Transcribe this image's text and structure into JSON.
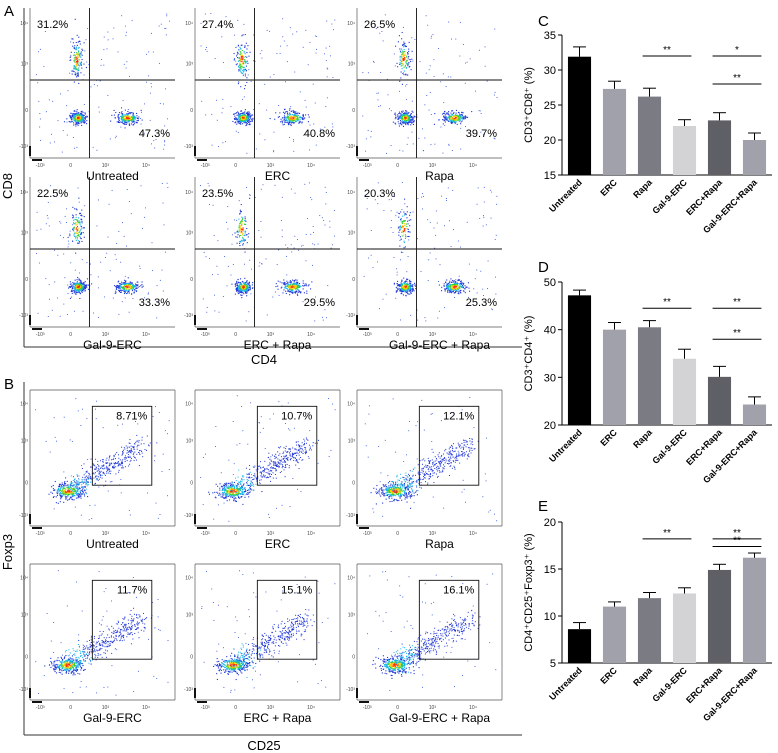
{
  "figure": {
    "panel_letters": [
      "A",
      "B",
      "C",
      "D",
      "E"
    ],
    "panel_a": {
      "y_axis_label": "CD8",
      "x_axis_label": "CD4",
      "plots": [
        {
          "name": "Untreated",
          "upper_left": "31.2%",
          "lower_right": "47.3%"
        },
        {
          "name": "ERC",
          "upper_left": "27.4%",
          "lower_right": "40.8%"
        },
        {
          "name": "Rapa",
          "upper_left": "26.5%",
          "lower_right": "39.7%"
        },
        {
          "name": "Gal-9-ERC",
          "upper_left": "22.5%",
          "lower_right": "33.3%"
        },
        {
          "name": "ERC + Rapa",
          "upper_left": "23.5%",
          "lower_right": "29.5%"
        },
        {
          "name": "Gal-9-ERC + Rapa",
          "upper_left": "20.3%",
          "lower_right": "25.3%"
        }
      ]
    },
    "panel_b": {
      "y_axis_label": "Foxp3",
      "x_axis_label": "CD25",
      "plots": [
        {
          "name": "Untreated",
          "gate": "8.71%"
        },
        {
          "name": "ERC",
          "gate": "10.7%"
        },
        {
          "name": "Rapa",
          "gate": "12.1%"
        },
        {
          "name": "Gal-9-ERC",
          "gate": "11.7%"
        },
        {
          "name": "ERC + Rapa",
          "gate": "15.1%"
        },
        {
          "name": "Gal-9-ERC + Rapa",
          "gate": "16.1%"
        }
      ]
    },
    "flow_tick_labels": {
      "x": [
        "-10³",
        "0",
        "10³",
        "10⁴"
      ],
      "y": [
        "10⁴",
        "10³",
        "0",
        "-10³"
      ]
    }
  },
  "chart_data": [
    {
      "panel": "C",
      "type": "bar",
      "ylabel": "CD3⁺CD8⁺ (%)",
      "ylim": [
        15,
        35
      ],
      "yticks": [
        15,
        20,
        25,
        30,
        35
      ],
      "categories": [
        "Untreated",
        "ERC",
        "Rapa",
        "Gal-9-ERC",
        "ERC+Rapa",
        "Gal-9-ERC+Rapa"
      ],
      "values": [
        31.9,
        27.3,
        26.2,
        22.0,
        22.8,
        20.0
      ],
      "errors": [
        1.4,
        1.1,
        1.2,
        0.9,
        1.1,
        1.0
      ],
      "colors": [
        "#000000",
        "#a1a1ab",
        "#7b7b84",
        "#d3d3d6",
        "#5f5f66",
        "#a1a1ab"
      ],
      "significance": [
        {
          "from": 2,
          "to": 3,
          "label": "**",
          "level": 32.0
        },
        {
          "from": 4,
          "to": 5,
          "label": "*",
          "level": 32.0
        },
        {
          "from": 4,
          "to": 5,
          "label": "**",
          "level": 28.0
        }
      ]
    },
    {
      "panel": "D",
      "type": "bar",
      "ylabel": "CD3⁺CD4⁺ (%)",
      "ylim": [
        20,
        50
      ],
      "yticks": [
        20,
        30,
        40,
        50
      ],
      "categories": [
        "Untreated",
        "ERC",
        "Rapa",
        "Gal-9-ERC",
        "ERC+Rapa",
        "Gal-9-ERC+Rapa"
      ],
      "values": [
        47.2,
        40.0,
        40.5,
        33.9,
        30.1,
        24.3
      ],
      "errors": [
        1.1,
        1.5,
        1.4,
        2.0,
        2.2,
        1.6
      ],
      "colors": [
        "#000000",
        "#a1a1ab",
        "#7b7b84",
        "#d3d3d6",
        "#5f5f66",
        "#a1a1ab"
      ],
      "significance": [
        {
          "from": 2,
          "to": 3,
          "label": "**",
          "level": 44.5
        },
        {
          "from": 4,
          "to": 5,
          "label": "**",
          "level": 44.5
        },
        {
          "from": 4,
          "to": 5,
          "label": "**",
          "level": 38.0
        }
      ]
    },
    {
      "panel": "E",
      "type": "bar",
      "ylabel": "CD4⁺CD25⁺Foxp3⁺ (%)",
      "ylim": [
        5,
        20
      ],
      "yticks": [
        5,
        10,
        15,
        20
      ],
      "categories": [
        "Untreated",
        "ERC",
        "Rapa",
        "Gal-9-ERC",
        "ERC+Rapa",
        "Gal-9-ERC+Rapa"
      ],
      "values": [
        8.6,
        11.0,
        11.9,
        12.4,
        14.9,
        16.2
      ],
      "errors": [
        0.7,
        0.5,
        0.6,
        0.6,
        0.6,
        0.5
      ],
      "colors": [
        "#000000",
        "#a1a1ab",
        "#7b7b84",
        "#d3d3d6",
        "#5f5f66",
        "#a1a1ab"
      ],
      "significance": [
        {
          "from": 2,
          "to": 3,
          "label": "**",
          "level": 18.2
        },
        {
          "from": 4,
          "to": 5,
          "label": "**",
          "level": 18.2
        },
        {
          "from": 4,
          "to": 5,
          "label": "**",
          "level": 17.4
        }
      ]
    }
  ]
}
